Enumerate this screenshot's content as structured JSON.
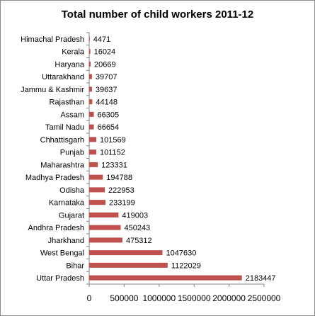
{
  "chart_data": {
    "type": "bar",
    "orientation": "horizontal",
    "title": "Total number of child workers  2011-12",
    "xlabel": "",
    "ylabel": "",
    "categories": [
      "Himachal Pradesh",
      "Kerala",
      "Haryana",
      "Uttarakhand",
      "Jammu & Kashmir",
      "Rajasthan",
      "Assam",
      "Tamil Nadu",
      "Chhattisgarh",
      "Punjab",
      "Maharashtra",
      "Madhya Pradesh",
      "Odisha",
      "Karnataka",
      "Gujarat",
      "Andhra Pradesh",
      "Jharkhand",
      "West Bengal",
      "Bihar",
      "Uttar Pradesh"
    ],
    "values": [
      4471,
      16024,
      20669,
      39707,
      39637,
      44148,
      66305,
      66654,
      101569,
      101152,
      123331,
      194788,
      222953,
      233199,
      419003,
      450243,
      475312,
      1047630,
      1122029,
      2183447
    ],
    "value_labels": [
      "4471",
      "16024",
      "20669",
      "39707",
      "39637",
      "44148",
      "66305",
      "66654",
      "101569",
      "101152",
      "123331",
      "194788",
      "222953",
      "233199",
      "419003",
      "450243",
      "475312",
      "1047630",
      "1122029",
      "2183447"
    ],
    "xlim": [
      0,
      2500000
    ],
    "xticks": [
      0,
      500000,
      1000000,
      1500000,
      2000000,
      2500000
    ],
    "xtick_labels": [
      "0",
      "500000",
      "1000000",
      "1500000",
      "2000000",
      "2500000"
    ],
    "bar_color": "#c0504d",
    "grid": false,
    "legend": false,
    "data_labels": true
  }
}
